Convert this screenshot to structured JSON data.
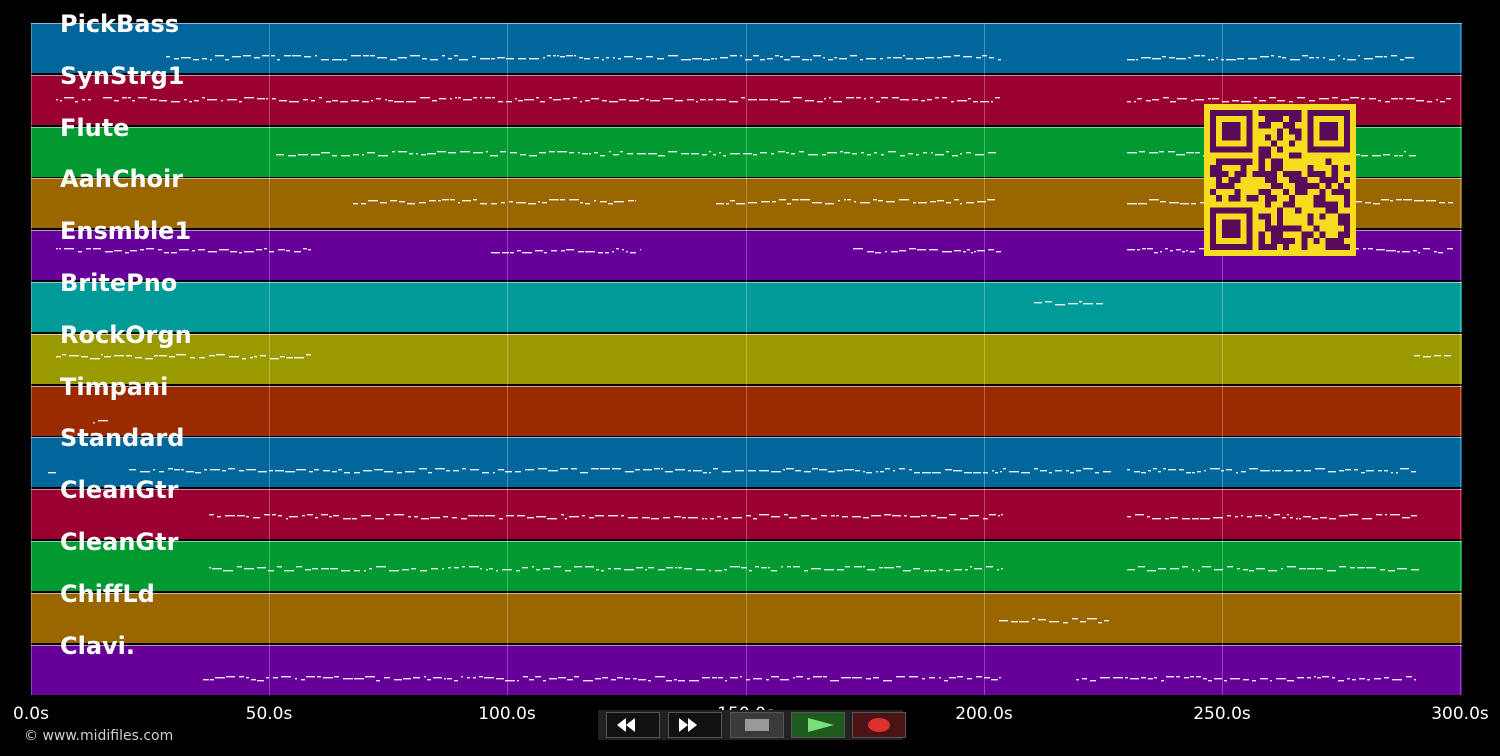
{
  "tracks": [
    {
      "name": "PickBass",
      "color": "#00669c"
    },
    {
      "name": "SynStrg1",
      "color": "#9a0030"
    },
    {
      "name": "Flute",
      "color": "#009a30"
    },
    {
      "name": "AahChoir",
      "color": "#996600"
    },
    {
      "name": "Ensmble1",
      "color": "#660099"
    },
    {
      "name": "BritePno",
      "color": "#009a99"
    },
    {
      "name": "RockOrgn",
      "color": "#9a9a00"
    },
    {
      "name": "Timpani",
      "color": "#9a2a00"
    },
    {
      "name": "Standard",
      "color": "#00669c"
    },
    {
      "name": "CleanGtr",
      "color": "#9a0030"
    },
    {
      "name": "CleanGtr",
      "color": "#009a30"
    },
    {
      "name": "ChiffLd",
      "color": "#996600"
    },
    {
      "name": "Clavi.",
      "color": "#660099"
    }
  ],
  "timeline": {
    "ticks": [
      "0.0s",
      "50.0s",
      "100.0s",
      "150.0s",
      "200.0s",
      "250.0s",
      "300.0s"
    ],
    "max_seconds": 300
  },
  "copyright": "© www.midifiles.com",
  "transport": {
    "rewind": "rewind-icon",
    "fast_forward": "fast-forward-icon",
    "stop": "stop-icon",
    "play": "play-icon",
    "record": "record-icon"
  },
  "qr_code": {
    "fg": "#5a0a5a",
    "bg": "#f5dc1e"
  }
}
